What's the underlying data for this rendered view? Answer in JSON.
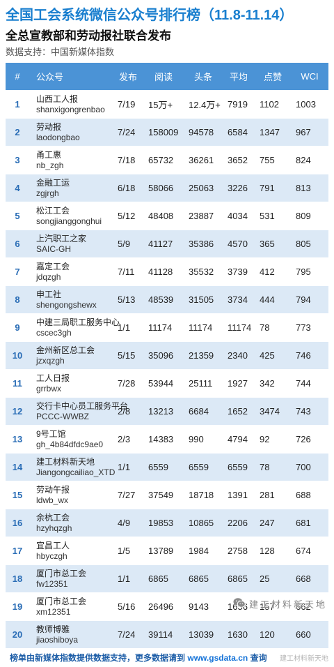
{
  "title": "全国工会系统微信公众号排行榜（11.8-11.14）",
  "subtitle": "全总宣教部和劳动报社联合发布",
  "source": "数据支持：中国新媒体指数",
  "colors": {
    "title": "#1a7fcf",
    "header_bg": "#4b93d6",
    "row_alt": "#dce9f6",
    "rank": "#2a6db6",
    "footer": "#1f5fa8"
  },
  "table": {
    "headers": [
      "#",
      "公众号",
      "发布",
      "阅读",
      "头条",
      "平均",
      "点赞",
      "WCI"
    ],
    "rows": [
      {
        "rank": "1",
        "name": "山西工人报",
        "id": "shanxigongrenbao",
        "publish": "7/19",
        "read": "15万+",
        "top": "12.4万+",
        "avg": "7919",
        "like": "1102",
        "wci": "1003"
      },
      {
        "rank": "2",
        "name": "劳动报",
        "id": "laodongbao",
        "publish": "7/24",
        "read": "158009",
        "top": "94578",
        "avg": "6584",
        "like": "1347",
        "wci": "967"
      },
      {
        "rank": "3",
        "name": "甬工惠",
        "id": "nb_zgh",
        "publish": "7/18",
        "read": "65732",
        "top": "36261",
        "avg": "3652",
        "like": "755",
        "wci": "824"
      },
      {
        "rank": "4",
        "name": "金融工运",
        "id": "zgjrgh",
        "publish": "6/18",
        "read": "58066",
        "top": "25063",
        "avg": "3226",
        "like": "791",
        "wci": "813"
      },
      {
        "rank": "5",
        "name": "松江工会",
        "id": "songjianggonghui",
        "publish": "5/12",
        "read": "48408",
        "top": "23887",
        "avg": "4034",
        "like": "531",
        "wci": "809"
      },
      {
        "rank": "6",
        "name": "上汽职工之家",
        "id": "SAIC-GH",
        "publish": "5/9",
        "read": "41127",
        "top": "35386",
        "avg": "4570",
        "like": "365",
        "wci": "805"
      },
      {
        "rank": "7",
        "name": "嘉定工会",
        "id": "jdqzgh",
        "publish": "7/11",
        "read": "41128",
        "top": "35532",
        "avg": "3739",
        "like": "412",
        "wci": "795"
      },
      {
        "rank": "8",
        "name": "申工社",
        "id": "shengongshewx",
        "publish": "5/13",
        "read": "48539",
        "top": "31505",
        "avg": "3734",
        "like": "444",
        "wci": "794"
      },
      {
        "rank": "9",
        "name": "中建三局职工服务中心",
        "id": "cscec3gh",
        "publish": "1/1",
        "read": "11174",
        "top": "11174",
        "avg": "11174",
        "like": "78",
        "wci": "773"
      },
      {
        "rank": "10",
        "name": "金州新区总工会",
        "id": "jzxqzgh",
        "publish": "5/15",
        "read": "35096",
        "top": "21359",
        "avg": "2340",
        "like": "425",
        "wci": "746"
      },
      {
        "rank": "11",
        "name": "工人日报",
        "id": "grrbwx",
        "publish": "7/28",
        "read": "53944",
        "top": "25111",
        "avg": "1927",
        "like": "342",
        "wci": "744"
      },
      {
        "rank": "12",
        "name": "交行卡中心员工服务平台",
        "id": "PCCC-WWBZ",
        "publish": "2/8",
        "read": "13213",
        "top": "6684",
        "avg": "1652",
        "like": "3474",
        "wci": "743"
      },
      {
        "rank": "13",
        "name": "9号工馆",
        "id": "gh_4b84dfdc9ae0",
        "publish": "2/3",
        "read": "14383",
        "top": "990",
        "avg": "4794",
        "like": "92",
        "wci": "726"
      },
      {
        "rank": "14",
        "name": "建工材料新天地",
        "id": "Jiangongcailiao_XTD",
        "publish": "1/1",
        "read": "6559",
        "top": "6559",
        "avg": "6559",
        "like": "78",
        "wci": "700"
      },
      {
        "rank": "15",
        "name": "劳动午报",
        "id": "ldwb_wx",
        "publish": "7/27",
        "read": "37549",
        "top": "18718",
        "avg": "1391",
        "like": "281",
        "wci": "688"
      },
      {
        "rank": "16",
        "name": "余杭工会",
        "id": "hzyhqzgh",
        "publish": "4/9",
        "read": "19853",
        "top": "10865",
        "avg": "2206",
        "like": "247",
        "wci": "681"
      },
      {
        "rank": "17",
        "name": "宜昌工人",
        "id": "hbyczgh",
        "publish": "1/5",
        "read": "13789",
        "top": "1984",
        "avg": "2758",
        "like": "128",
        "wci": "674"
      },
      {
        "rank": "18",
        "name": "厦门市总工会",
        "id": "fw12351",
        "publish": "1/1",
        "read": "6865",
        "top": "6865",
        "avg": "6865",
        "like": "25",
        "wci": "668"
      },
      {
        "rank": "19",
        "name": "厦门市总工会",
        "id": "xm12351",
        "publish": "5/16",
        "read": "26496",
        "top": "9143",
        "avg": "1656",
        "like": "157",
        "wci": "662"
      },
      {
        "rank": "20",
        "name": "教师博雅",
        "id": "jiaoshiboya",
        "publish": "7/24",
        "read": "39114",
        "top": "13039",
        "avg": "1630",
        "like": "120",
        "wci": "660"
      }
    ]
  },
  "footer": {
    "text": "榜单由新媒体指数提供数据支持，更多数据请到",
    "url": "www.gsdata.cn",
    "suffix": "查询"
  },
  "watermark": {
    "icon": "wechat-icon",
    "text": "建工材料新天地"
  }
}
